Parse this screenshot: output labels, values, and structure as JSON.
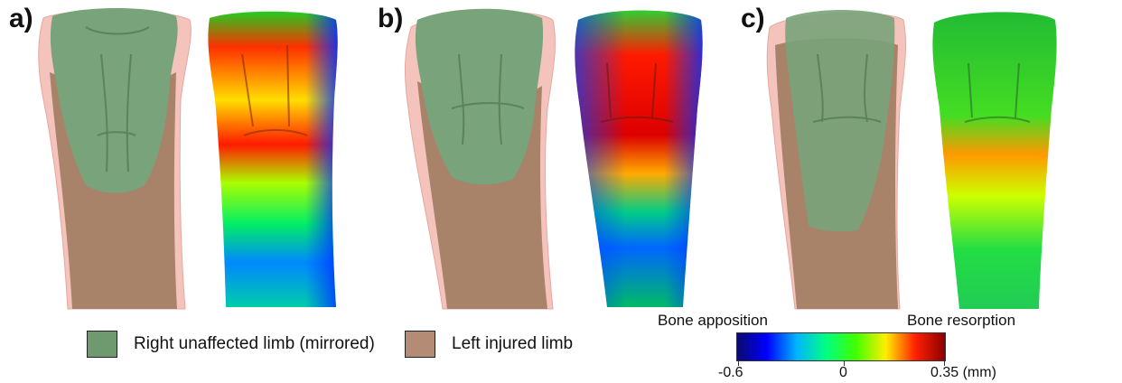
{
  "panels": [
    {
      "label": "a)"
    },
    {
      "label": "b)"
    },
    {
      "label": "c)"
    }
  ],
  "legend": {
    "right_limb": {
      "label": "Right unaffected limb (mirrored)",
      "color": "#6f9a6f"
    },
    "left_limb": {
      "label": "Left injured limb",
      "color": "#b48b74"
    }
  },
  "colorbar": {
    "left_caption": "Bone apposition",
    "right_caption": "Bone resorption",
    "tick_min": "-0.6",
    "tick_mid": "0",
    "tick_max": "0.35 (mm)",
    "colors": [
      "#0a0a6e",
      "#0000ff",
      "#00b4ff",
      "#00ff80",
      "#40ff00",
      "#ffee00",
      "#ff2000",
      "#8b0000"
    ]
  },
  "colors": {
    "overlay_pink": "#f3b9b0",
    "overlay_brown": "#a9826a",
    "overlay_green": "#79a37a"
  }
}
